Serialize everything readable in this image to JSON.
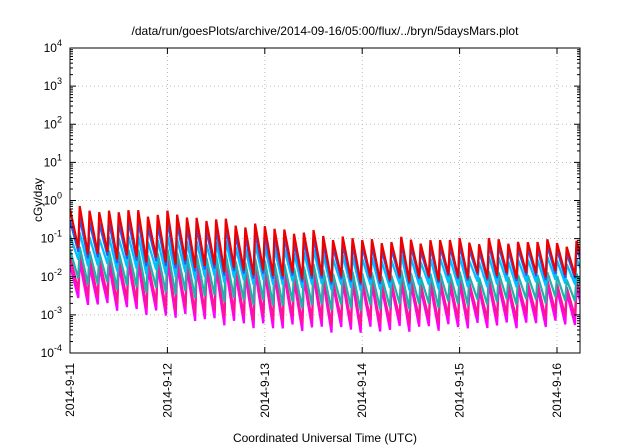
{
  "chart_data": {
    "type": "line",
    "title": "/data/run/goesPlots/archive/2014-09-16/05:00/flux/../bryn/5daysMars.plot",
    "xlabel": "Coordinated Universal Time (UTC)",
    "ylabel": "cGy/day",
    "x_tick_labels": [
      "2014-9-11",
      "2014-9-12",
      "2014-9-13",
      "2014-9-14",
      "2014-9-15",
      "2014-9-16"
    ],
    "x_range_days": [
      0,
      5.27
    ],
    "y_scale": "log",
    "ylim": [
      0.0001,
      10000
    ],
    "y_ticks": [
      {
        "base": "10",
        "exp": "-4"
      },
      {
        "base": "10",
        "exp": "-3"
      },
      {
        "base": "10",
        "exp": "-2"
      },
      {
        "base": "10",
        "exp": "-1"
      },
      {
        "base": "10",
        "exp": "0"
      },
      {
        "base": "10",
        "exp": "1"
      },
      {
        "base": "10",
        "exp": "2"
      },
      {
        "base": "10",
        "exp": "3"
      },
      {
        "base": "10",
        "exp": "4"
      }
    ],
    "grid": true,
    "grid_style": "dotted",
    "legend": "none",
    "sawtooth_period_days": 0.1,
    "series": [
      {
        "color": "#ff00ff",
        "peak_values": [
          0.02,
          0.02,
          0.012,
          0.006,
          0.006,
          0.005
        ],
        "trough_values": [
          0.0025,
          0.001,
          0.0005,
          0.0004,
          0.0005,
          0.0006
        ]
      },
      {
        "color": "#ff1493",
        "peak_values": [
          0.035,
          0.03,
          0.016,
          0.008,
          0.008,
          0.007
        ],
        "trough_values": [
          0.004,
          0.0015,
          0.0008,
          0.0006,
          0.0008,
          0.001
        ]
      },
      {
        "color": "#20b2aa",
        "peak_values": [
          0.05,
          0.045,
          0.025,
          0.012,
          0.012,
          0.011
        ],
        "trough_values": [
          0.008,
          0.004,
          0.002,
          0.0015,
          0.002,
          0.0025
        ]
      },
      {
        "color": "#00c0ff",
        "peak_values": [
          0.12,
          0.1,
          0.06,
          0.03,
          0.03,
          0.028
        ],
        "trough_values": [
          0.025,
          0.012,
          0.007,
          0.005,
          0.006,
          0.007
        ]
      },
      {
        "color": "#1e60ff",
        "peak_values": [
          0.3,
          0.25,
          0.12,
          0.06,
          0.06,
          0.055
        ],
        "trough_values": [
          0.04,
          0.02,
          0.01,
          0.007,
          0.009,
          0.01
        ]
      },
      {
        "color": "#ee0000",
        "peak_values": [
          0.6,
          0.45,
          0.2,
          0.09,
          0.09,
          0.08
        ],
        "trough_values": [
          0.05,
          0.025,
          0.012,
          0.008,
          0.01,
          0.012
        ]
      }
    ]
  }
}
